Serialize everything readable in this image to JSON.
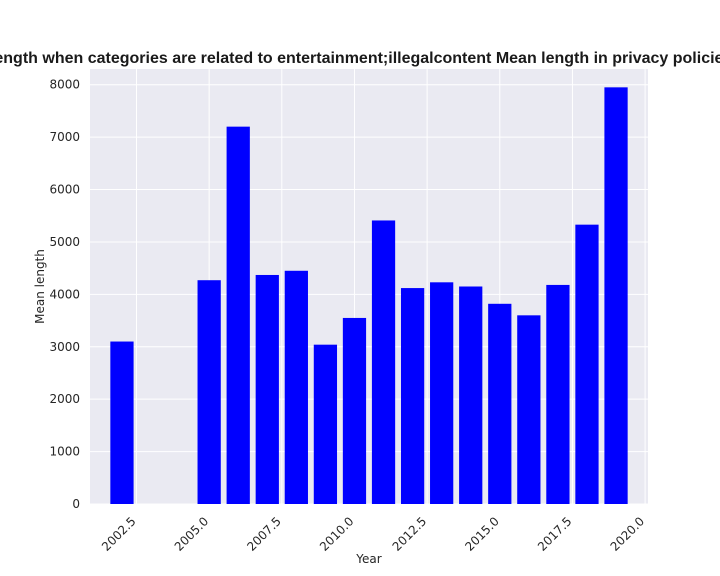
{
  "chart_data": {
    "type": "bar",
    "title": "Mean length when categories are related to entertainment;illegalcontent Mean length in privacy policies by Year",
    "xlabel": "Year",
    "ylabel": "Mean length",
    "x": [
      2002,
      2005,
      2006,
      2007,
      2008,
      2009,
      2010,
      2011,
      2012,
      2013,
      2014,
      2015,
      2016,
      2017,
      2018,
      2019
    ],
    "values": [
      3100,
      4270,
      7200,
      4370,
      4450,
      3040,
      3550,
      5410,
      4120,
      4230,
      4150,
      3820,
      3600,
      4180,
      5330,
      7950
    ],
    "xlim": [
      2000.9,
      2020.1
    ],
    "ylim": [
      0,
      8300
    ],
    "x_ticks": [
      2002.5,
      2005.0,
      2007.5,
      2010.0,
      2012.5,
      2015.0,
      2017.5,
      2020.0
    ],
    "x_tick_labels": [
      "2002.5",
      "2005.0",
      "2007.5",
      "2010.0",
      "2012.5",
      "2015.0",
      "2017.5",
      "2020.0"
    ],
    "y_ticks": [
      0,
      1000,
      2000,
      3000,
      4000,
      5000,
      6000,
      7000,
      8000
    ],
    "y_tick_labels": [
      "0",
      "1000",
      "2000",
      "3000",
      "4000",
      "5000",
      "6000",
      "7000",
      "8000"
    ],
    "grid": true,
    "colors": {
      "bar": "#0000ff",
      "plot_background": "#eaeaf2",
      "grid": "#ffffff"
    }
  }
}
